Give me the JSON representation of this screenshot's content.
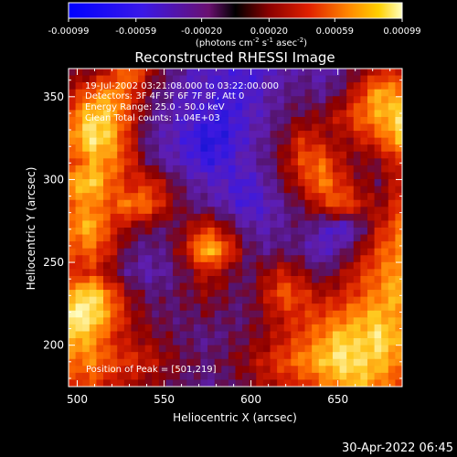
{
  "chart_data": {
    "type": "heatmap",
    "title": "Reconstructed RHESSI Image",
    "xlabel": "Heliocentric X (arcsec)",
    "ylabel": "Heliocentric Y (arcsec)",
    "xlim": [
      495,
      687
    ],
    "ylim": [
      175,
      367
    ],
    "xticks": [
      "500",
      "550",
      "600",
      "650"
    ],
    "yticks": [
      "200",
      "250",
      "300",
      "350"
    ],
    "xtick_values": [
      500,
      550,
      600,
      650
    ],
    "ytick_values": [
      200,
      250,
      300,
      350
    ],
    "colorbar": {
      "range": [
        -0.00099,
        0.00099
      ],
      "ticks": [
        "-0.00099",
        "-0.00059",
        "-0.00020",
        "0.00020",
        "0.00059",
        "0.00099"
      ],
      "tick_values": [
        -0.00099,
        -0.00059,
        -0.0002,
        0.0002,
        0.00059,
        0.00099
      ],
      "label_main": "(photons cm",
      "label_exp1": "-2",
      "label_mid1": " s",
      "label_exp2": "-1",
      "label_mid2": " asec",
      "label_exp3": "-2",
      "label_end": ")"
    },
    "annotations": [
      "19-Jul-2002 03:21:08.000 to 03:22:00.000",
      "Detectors: 3F 4F 5F 6F 7F 8F, Att 0",
      "Energy Range: 25.0 - 50.0 keV",
      "Clean    Total counts: 1.04E+03"
    ],
    "peak_label": "Position of Peak = [501,219]",
    "peak_position": [
      501,
      219
    ],
    "intensity_grid": [
      [
        0.4,
        0.45,
        0.55,
        0.75,
        0.5,
        0.35,
        0.25,
        0.2,
        0.2,
        0.15,
        0.2,
        0.25,
        0.3,
        0.25,
        0.3,
        0.45,
        0.55,
        0.6
      ],
      [
        0.55,
        0.7,
        0.8,
        0.65,
        0.4,
        0.3,
        0.2,
        0.2,
        0.15,
        0.15,
        0.25,
        0.3,
        0.35,
        0.3,
        0.4,
        0.6,
        0.85,
        0.75
      ],
      [
        0.7,
        0.9,
        0.85,
        0.6,
        0.35,
        0.25,
        0.2,
        0.15,
        0.1,
        0.2,
        0.25,
        0.35,
        0.4,
        0.45,
        0.55,
        0.7,
        0.8,
        0.9
      ],
      [
        0.75,
        0.95,
        0.85,
        0.55,
        0.3,
        0.25,
        0.15,
        0.05,
        0.1,
        0.2,
        0.3,
        0.4,
        0.6,
        0.5,
        0.45,
        0.55,
        0.65,
        0.85
      ],
      [
        0.6,
        0.8,
        0.75,
        0.6,
        0.35,
        0.25,
        0.2,
        0.1,
        0.15,
        0.25,
        0.3,
        0.45,
        0.65,
        0.7,
        0.5,
        0.4,
        0.45,
        0.6
      ],
      [
        0.8,
        0.9,
        0.7,
        0.55,
        0.6,
        0.45,
        0.3,
        0.25,
        0.2,
        0.15,
        0.25,
        0.4,
        0.55,
        0.75,
        0.6,
        0.45,
        0.4,
        0.55
      ],
      [
        0.7,
        0.75,
        0.65,
        0.75,
        0.7,
        0.5,
        0.35,
        0.3,
        0.25,
        0.15,
        0.2,
        0.3,
        0.4,
        0.55,
        0.7,
        0.55,
        0.45,
        0.6
      ],
      [
        0.75,
        0.85,
        0.6,
        0.45,
        0.4,
        0.35,
        0.45,
        0.6,
        0.45,
        0.3,
        0.25,
        0.3,
        0.35,
        0.25,
        0.15,
        0.3,
        0.55,
        0.7
      ],
      [
        0.65,
        0.7,
        0.55,
        0.35,
        0.3,
        0.35,
        0.55,
        0.9,
        0.7,
        0.4,
        0.3,
        0.35,
        0.3,
        0.2,
        0.3,
        0.45,
        0.65,
        0.75
      ],
      [
        0.55,
        0.6,
        0.45,
        0.3,
        0.25,
        0.3,
        0.4,
        0.55,
        0.45,
        0.35,
        0.45,
        0.55,
        0.45,
        0.35,
        0.45,
        0.6,
        0.7,
        0.8
      ],
      [
        0.8,
        0.95,
        0.7,
        0.45,
        0.35,
        0.35,
        0.4,
        0.45,
        0.4,
        0.35,
        0.5,
        0.7,
        0.6,
        0.5,
        0.55,
        0.65,
        0.75,
        0.85
      ],
      [
        1.0,
        0.95,
        0.75,
        0.5,
        0.4,
        0.35,
        0.35,
        0.4,
        0.35,
        0.35,
        0.45,
        0.55,
        0.6,
        0.65,
        0.7,
        0.8,
        0.85,
        0.75
      ],
      [
        0.85,
        0.8,
        0.6,
        0.5,
        0.45,
        0.4,
        0.35,
        0.3,
        0.35,
        0.4,
        0.45,
        0.55,
        0.65,
        0.75,
        0.9,
        0.85,
        0.95,
        0.8
      ],
      [
        0.7,
        0.75,
        0.65,
        0.6,
        0.55,
        0.45,
        0.4,
        0.35,
        0.4,
        0.45,
        0.55,
        0.65,
        0.75,
        0.85,
        0.95,
        0.9,
        0.85,
        0.75
      ],
      [
        0.6,
        0.65,
        0.55,
        0.5,
        0.45,
        0.4,
        0.35,
        0.3,
        0.35,
        0.4,
        0.5,
        0.55,
        0.6,
        0.7,
        0.8,
        0.85,
        0.75,
        0.65
      ]
    ]
  },
  "footer": {
    "timestamp": "30-Apr-2022 06:45"
  }
}
